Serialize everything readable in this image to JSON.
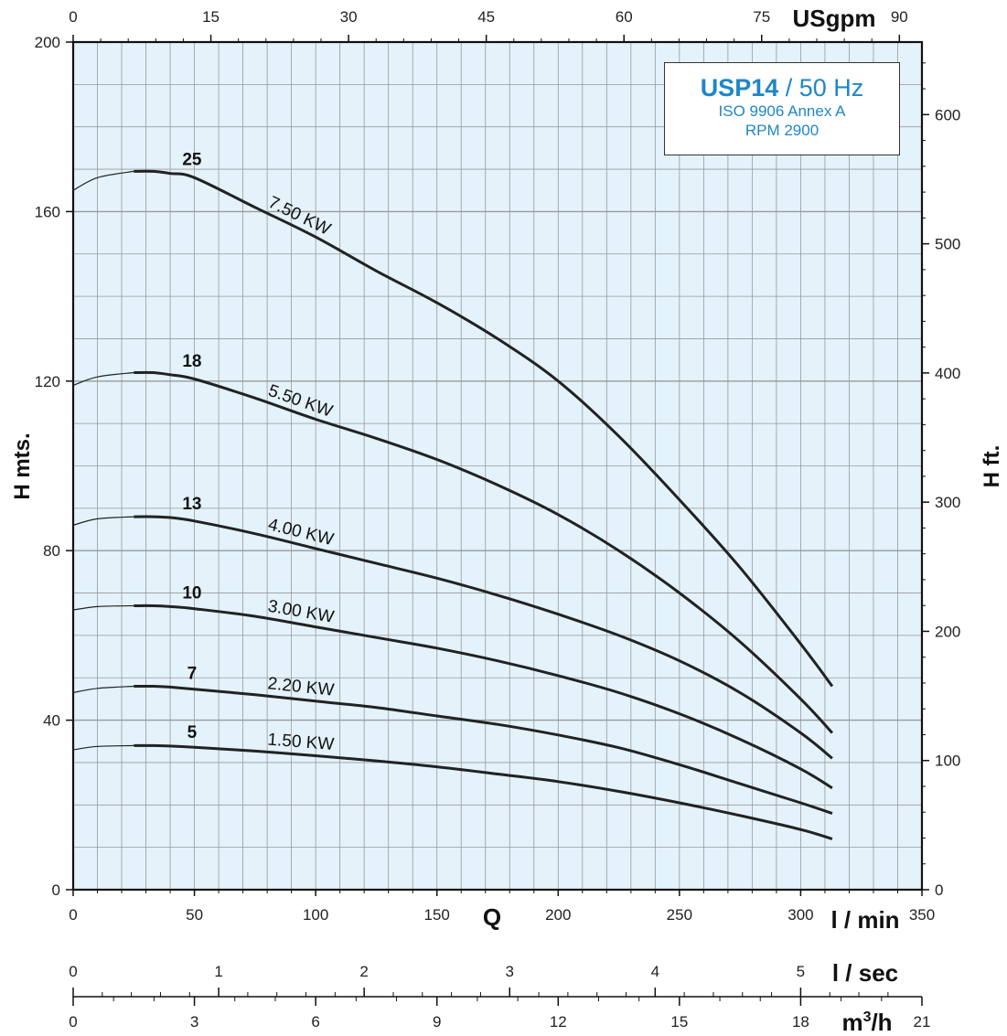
{
  "chart_data": {
    "type": "line",
    "x_unit": "l / min",
    "y_unit": "H mts.",
    "xlim": [
      0,
      350
    ],
    "ylim": [
      0,
      200
    ],
    "x_ticks": [
      0,
      50,
      100,
      150,
      200,
      250,
      300,
      350
    ],
    "y_ticks": [
      0,
      40,
      80,
      120,
      160,
      200
    ],
    "grid": true,
    "xlabel": "Q",
    "xlabel_unit": "l / min",
    "ylabel": "H mts.",
    "secondary_y": {
      "label": "H ft.",
      "ticks": [
        0,
        100,
        200,
        300,
        400,
        500,
        600
      ],
      "factor": 3.2808
    },
    "secondary_x_top": {
      "label": "USgpm",
      "ticks": [
        0,
        15,
        30,
        45,
        60,
        75,
        90
      ],
      "factor": 0.26417
    },
    "extra_axes": [
      {
        "label": "l / sec",
        "ticks": [
          0,
          1,
          2,
          3,
          4,
          5
        ],
        "factor": 0.016667
      },
      {
        "label": "m3/h",
        "ticks": [
          0,
          3,
          6,
          9,
          12,
          15,
          18,
          21
        ],
        "factor": 0.06
      }
    ],
    "infobox": {
      "model": "USP14",
      "freq": " / 50 Hz",
      "line2": "ISO 9906 Annex A",
      "line3": "RPM 2900"
    },
    "series": [
      {
        "name": "25",
        "power": "7.50 KW",
        "x": [
          0,
          10,
          25,
          33,
          40,
          50,
          75,
          100,
          125,
          150,
          175,
          200,
          225,
          250,
          275,
          300,
          313
        ],
        "y": [
          165,
          168,
          169.5,
          169.5,
          169,
          168,
          161,
          154,
          146,
          138.5,
          130,
          120,
          107,
          92,
          76,
          58,
          48
        ]
      },
      {
        "name": "18",
        "power": "5.50 KW",
        "x": [
          0,
          10,
          25,
          33,
          40,
          50,
          75,
          100,
          125,
          150,
          175,
          200,
          225,
          250,
          275,
          300,
          313
        ],
        "y": [
          119,
          121,
          122,
          122,
          121.5,
          120.5,
          116,
          111,
          106.5,
          101.5,
          95.5,
          88.5,
          80,
          70,
          58.5,
          45,
          37
        ]
      },
      {
        "name": "13",
        "power": "4.00 KW",
        "x": [
          0,
          10,
          25,
          33,
          40,
          50,
          75,
          100,
          125,
          150,
          175,
          200,
          225,
          250,
          275,
          300,
          313
        ],
        "y": [
          86,
          87.5,
          88,
          88,
          87.8,
          87,
          84,
          80.5,
          77,
          73.5,
          69.5,
          65,
          60,
          54,
          46.5,
          37,
          31
        ]
      },
      {
        "name": "10",
        "power": "3.00 KW",
        "x": [
          0,
          10,
          25,
          33,
          40,
          50,
          75,
          100,
          125,
          150,
          175,
          200,
          225,
          250,
          275,
          300,
          313
        ],
        "y": [
          66,
          66.8,
          67,
          67,
          66.8,
          66.3,
          64.5,
          62,
          59.5,
          57,
          54,
          50.5,
          46.5,
          41.5,
          35.5,
          28.5,
          24
        ]
      },
      {
        "name": "7",
        "power": "2.20 KW",
        "x": [
          0,
          10,
          25,
          33,
          40,
          50,
          75,
          100,
          125,
          150,
          175,
          200,
          225,
          250,
          275,
          300,
          313
        ],
        "y": [
          46.5,
          47.5,
          48,
          48,
          47.8,
          47.3,
          46,
          44.5,
          43,
          41,
          39,
          36.5,
          33.5,
          29.5,
          25,
          20.5,
          18
        ]
      },
      {
        "name": "5",
        "power": "1.50 KW",
        "x": [
          0,
          10,
          25,
          33,
          40,
          50,
          75,
          100,
          125,
          150,
          175,
          200,
          225,
          250,
          275,
          300,
          313
        ],
        "y": [
          33,
          33.8,
          34,
          34,
          33.9,
          33.6,
          32.7,
          31.6,
          30.4,
          29,
          27.3,
          25.5,
          23.2,
          20.5,
          17.5,
          14.2,
          12
        ]
      }
    ]
  }
}
